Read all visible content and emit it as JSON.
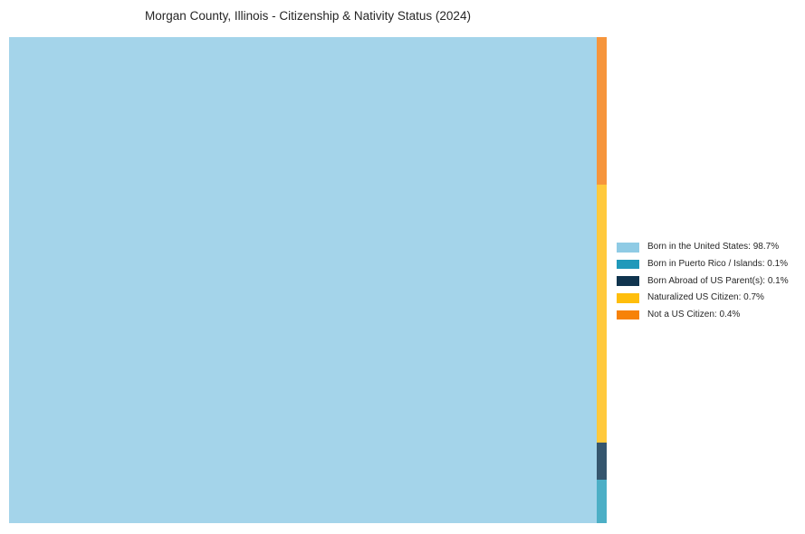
{
  "chart_data": {
    "type": "treemap",
    "title": "Morgan County, Illinois - Citizenship & Nativity Status (2024)",
    "unit": "percent",
    "categories": [
      "Born in the United States",
      "Born in Puerto Rico / Islands",
      "Born Abroad of US Parent(s)",
      "Naturalized US Citizen",
      "Not a US Citizen"
    ],
    "values": [
      98.7,
      0.1,
      0.1,
      0.7,
      0.4
    ],
    "legend_position": "right-center",
    "grid": false,
    "layout_note": "single large cell for largest share on left; remaining shares stacked in a thin column on the right, ordered top-to-bottom: Not a US Citizen, Naturalized US Citizen, Born Abroad of US Parent(s), Born in Puerto Rico / Islands",
    "cell_fill_note": "treemap cells rendered lighter than legend swatches (approx. 85% opacity over white)",
    "items": [
      {
        "label": "Born in the United States",
        "value_pct": 98.7,
        "legend_text": "Born in the United States: 98.7%",
        "color": "#8fcbe5",
        "cell_color": "#a4d4ea"
      },
      {
        "label": "Born in Puerto Rico / Islands",
        "value_pct": 0.1,
        "legend_text": "Born in Puerto Rico / Islands: 0.1%",
        "color": "#2099ba",
        "cell_color": "#4cafc6"
      },
      {
        "label": "Born Abroad of US Parent(s)",
        "value_pct": 0.1,
        "legend_text": "Born Abroad of US Parent(s): 0.1%",
        "color": "#10344e",
        "cell_color": "#35566e"
      },
      {
        "label": "Naturalized US Citizen",
        "value_pct": 0.7,
        "legend_text": "Naturalized US Citizen: 0.7%",
        "color": "#ffbe0c",
        "cell_color": "#ffc93c"
      },
      {
        "label": "Not a US Citizen",
        "value_pct": 0.4,
        "legend_text": "Not a US Citizen: 0.4%",
        "color": "#f78208",
        "cell_color": "#f6953c"
      }
    ]
  }
}
